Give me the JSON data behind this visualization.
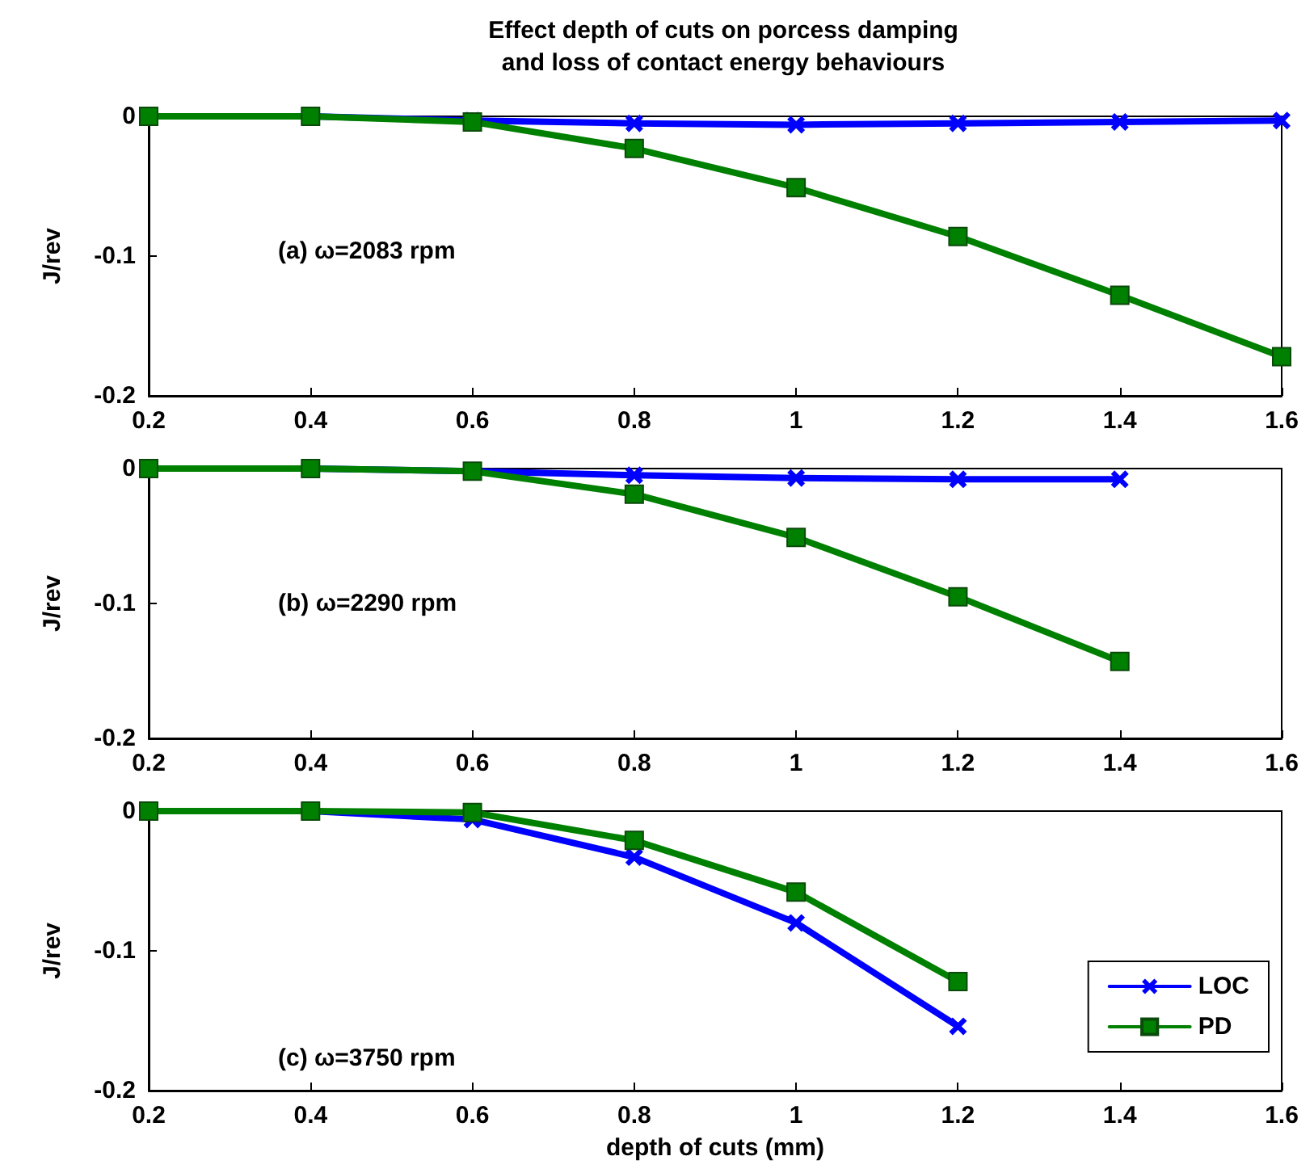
{
  "chart_data": [
    {
      "type": "line",
      "title": "Effect depth of cuts on porcess damping\nand loss of contact energy behaviours",
      "ylabel": "J/rev",
      "annotations": [
        "(a) ω=2083 rpm"
      ],
      "x": [
        0.2,
        0.4,
        0.6,
        0.8,
        1,
        1.2,
        1.4,
        1.6
      ],
      "series": [
        {
          "color": "#0000ff",
          "marker": "cross",
          "values": [
            0,
            0,
            -0.003,
            -0.005,
            -0.006,
            -0.005,
            -0.004,
            -0.003
          ]
        },
        {
          "color": "#008000",
          "marker": "square",
          "values": [
            0,
            0,
            -0.004,
            -0.023,
            -0.051,
            -0.086,
            -0.128,
            -0.172
          ]
        }
      ],
      "xlim": [
        0.2,
        1.6
      ],
      "xticks": [
        0.2,
        0.4,
        0.6,
        0.8,
        1,
        1.2,
        1.4,
        1.6
      ],
      "ylim": [
        -0.2,
        0
      ],
      "yticks": [
        -0.2,
        -0.1,
        0
      ],
      "grid": false,
      "line_style": "solid"
    },
    {
      "type": "line",
      "ylabel": "J/rev",
      "annotations": [
        "(b) ω=2290 rpm"
      ],
      "x": [
        0.2,
        0.4,
        0.6,
        0.8,
        1,
        1.2,
        1.4
      ],
      "series": [
        {
          "color": "#0000ff",
          "marker": "cross",
          "values": [
            0,
            0,
            -0.002,
            -0.005,
            -0.007,
            -0.008,
            -0.008
          ]
        },
        {
          "color": "#008000",
          "marker": "square",
          "values": [
            0,
            0,
            -0.002,
            -0.019,
            -0.051,
            -0.095,
            -0.143
          ]
        }
      ],
      "xlim": [
        0.2,
        1.6
      ],
      "xticks": [
        0.2,
        0.4,
        0.6,
        0.8,
        1,
        1.2,
        1.4,
        1.6
      ],
      "ylim": [
        -0.2,
        0
      ],
      "yticks": [
        -0.2,
        -0.1,
        0
      ],
      "grid": false,
      "line_style": "solid"
    },
    {
      "type": "line",
      "xlabel": "depth of cuts (mm)",
      "ylabel": "J/rev",
      "annotations": [
        "(c) ω=3750 rpm"
      ],
      "x": [
        0.2,
        0.4,
        0.6,
        0.8,
        1,
        1.2
      ],
      "series": [
        {
          "name": "LOC",
          "color": "#0000ff",
          "marker": "cross",
          "values": [
            0,
            0,
            -0.006,
            -0.033,
            -0.08,
            -0.154
          ]
        },
        {
          "name": "PD",
          "color": "#008000",
          "marker": "square",
          "values": [
            0,
            0,
            -0.001,
            -0.021,
            -0.058,
            -0.122
          ]
        }
      ],
      "xlim": [
        0.2,
        1.6
      ],
      "xticks": [
        0.2,
        0.4,
        0.6,
        0.8,
        1,
        1.2,
        1.4,
        1.6
      ],
      "ylim": [
        -0.2,
        0
      ],
      "yticks": [
        -0.2,
        -0.1,
        0
      ],
      "grid": false,
      "legend": "bottom right",
      "line_style": "solid"
    }
  ]
}
